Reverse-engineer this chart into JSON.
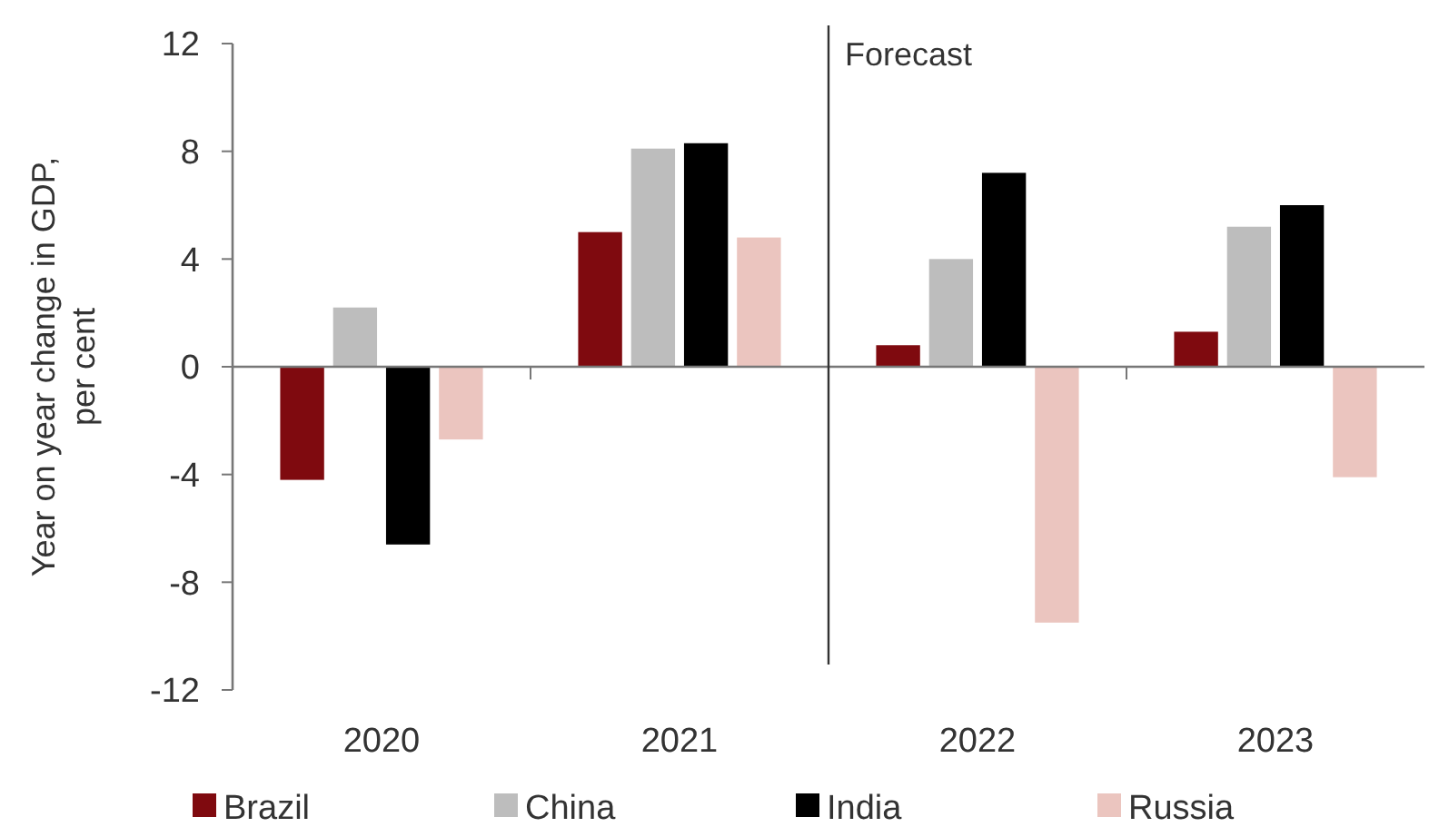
{
  "chart_data": {
    "type": "bar",
    "ylabel": "Year on year change in GDP, per cent",
    "categories": [
      "2020",
      "2021",
      "2022",
      "2023"
    ],
    "series": [
      {
        "name": "Brazil",
        "color": "#7f0a0f",
        "values": [
          -4.2,
          5.0,
          0.8,
          1.3
        ]
      },
      {
        "name": "China",
        "color": "#bdbdbd",
        "values": [
          2.2,
          8.1,
          4.0,
          5.2
        ]
      },
      {
        "name": "India",
        "color": "#000000",
        "values": [
          -6.6,
          8.3,
          7.2,
          6.0
        ]
      },
      {
        "name": "Russia",
        "color": "#ebc5bf",
        "values": [
          -2.7,
          4.8,
          -9.5,
          -4.1
        ]
      }
    ],
    "ylim": [
      -12,
      12
    ],
    "yticks": [
      -12,
      -8,
      -4,
      0,
      4,
      8,
      12
    ],
    "ref_lines": [
      {
        "axis": "x",
        "value": "2022",
        "label": "Forecast",
        "color": "#333333"
      }
    ],
    "grid": false,
    "legend": "bottom"
  }
}
